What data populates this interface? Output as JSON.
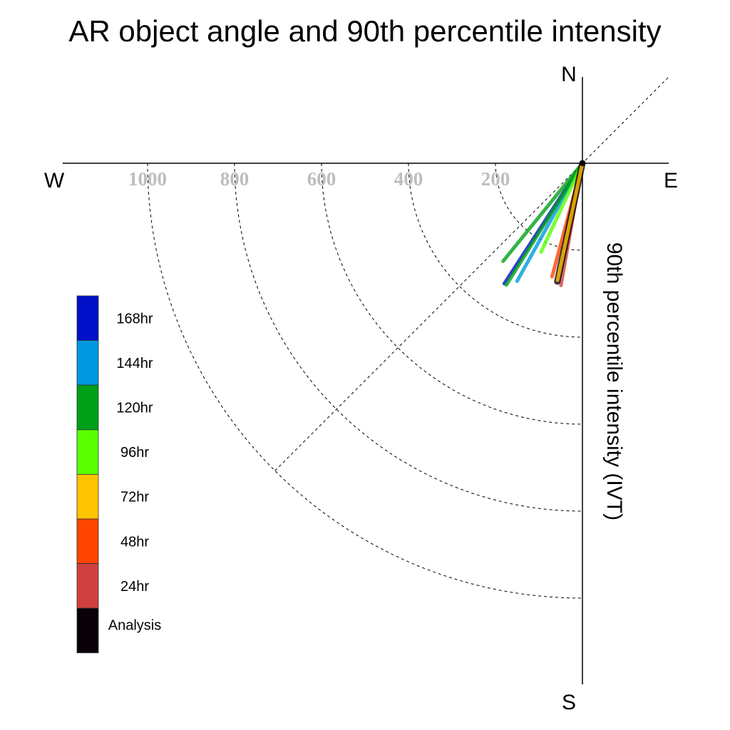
{
  "chart_data": {
    "type": "polar-vector",
    "title": "AR object angle and 90th percentile intensity",
    "ylabel": "90th percentile intensity (IVT)",
    "compass": {
      "north": "N",
      "south": "S",
      "east": "E",
      "west": "W"
    },
    "radial_ticks": [
      200,
      400,
      600,
      800,
      1000
    ],
    "radial_tick_labels": [
      "200",
      "400",
      "600",
      "800",
      "1000"
    ],
    "radial_max": 1200,
    "legend": [
      "168hr",
      "144hr",
      "120hr",
      "96hr",
      "72hr",
      "48hr",
      "24hr",
      "Analysis"
    ],
    "colors": {
      "168hr": "#0010c8",
      "144hr": "#0098e0",
      "120hr": "#00a018",
      "96hr": "#58ff00",
      "72hr": "#ffc400",
      "48hr": "#ff4400",
      "24hr": "#d04040",
      "Analysis": "#0a0008"
    },
    "vectors": [
      {
        "name": "168hr",
        "angle_deg": 213,
        "intensity": 330
      },
      {
        "name": "144hr",
        "angle_deg": 209,
        "intensity": 310
      },
      {
        "name": "120hr",
        "angle_deg": 219,
        "intensity": 290
      },
      {
        "name": "120hr",
        "angle_deg": 212,
        "intensity": 330
      },
      {
        "name": "96hr",
        "angle_deg": 205,
        "intensity": 225
      },
      {
        "name": "48hr",
        "angle_deg": 195,
        "intensity": 270
      },
      {
        "name": "24hr",
        "angle_deg": 190,
        "intensity": 285
      },
      {
        "name": "Analysis",
        "angle_deg": 192,
        "intensity": 278
      },
      {
        "name": "72hr",
        "angle_deg": 192,
        "intensity": 275
      }
    ]
  }
}
